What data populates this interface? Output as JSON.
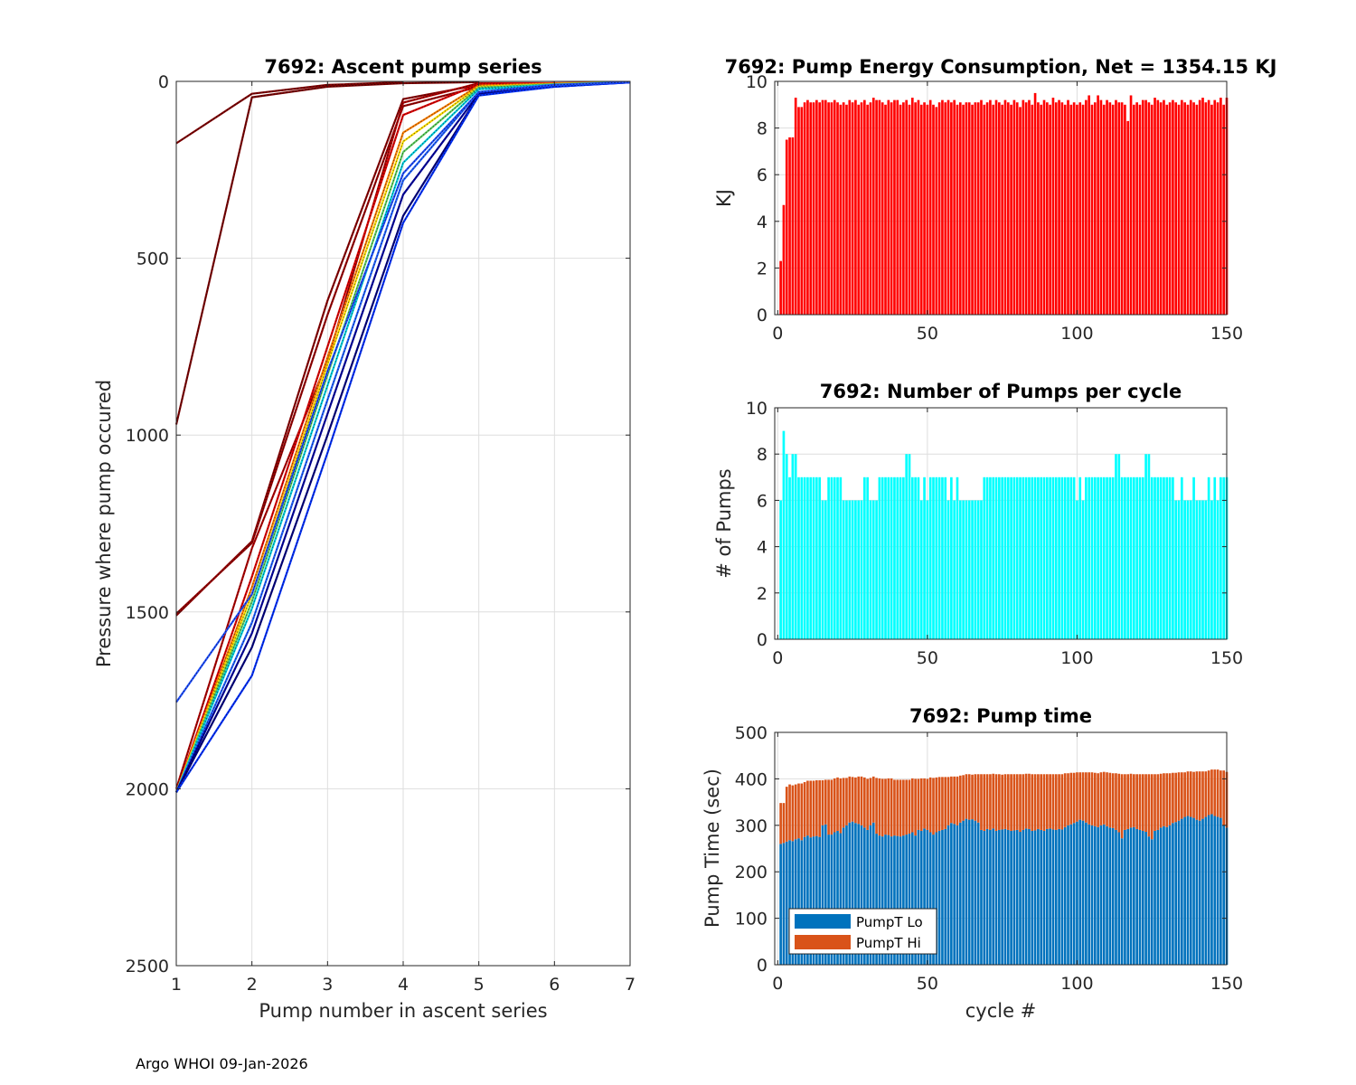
{
  "footer": "Argo WHOI 09-Jan-2026",
  "chart_data": [
    {
      "id": "ascent",
      "type": "line",
      "title": "7692: Ascent pump series",
      "xlabel": "Pump number in ascent series",
      "ylabel": "Pressure where pump occured",
      "xlim": [
        1,
        7
      ],
      "ylim": [
        0,
        2500
      ],
      "y_reversed": true,
      "xticks": [
        1,
        2,
        3,
        4,
        5,
        6,
        7
      ],
      "yticks": [
        0,
        500,
        1000,
        1500,
        2000,
        2500
      ],
      "grid": true,
      "colormap": "jet",
      "series_count": 150,
      "series_note": "one line per profile cycle, colored by cycle (early = dark red, late = blue); representative profiles below",
      "series": [
        {
          "name": "early-a",
          "color": "#800000",
          "x": [
            1,
            2,
            3,
            4
          ],
          "y": [
            175,
            35,
            10,
            2
          ]
        },
        {
          "name": "early-b",
          "color": "#7a0000",
          "x": [
            1,
            2,
            3,
            4,
            5
          ],
          "y": [
            970,
            45,
            15,
            5,
            2
          ]
        },
        {
          "name": "early-c",
          "color": "#8a0000",
          "x": [
            1,
            2,
            3,
            4,
            5,
            6
          ],
          "y": [
            1510,
            1300,
            620,
            50,
            10,
            5
          ]
        },
        {
          "name": "early-d",
          "color": "#990000",
          "x": [
            1,
            2,
            3,
            4,
            5,
            6
          ],
          "y": [
            1505,
            1305,
            660,
            70,
            15,
            5
          ]
        },
        {
          "name": "early-e",
          "color": "#b00000",
          "x": [
            1,
            2,
            3,
            4,
            5,
            6
          ],
          "y": [
            2000,
            1320,
            790,
            60,
            5,
            5
          ]
        },
        {
          "name": "c-red",
          "color": "#e00000",
          "x": [
            1,
            2,
            3,
            4,
            5,
            6,
            7
          ],
          "y": [
            2010,
            1400,
            750,
            95,
            8,
            5,
            2
          ]
        },
        {
          "name": "c-orange",
          "color": "#ff8000",
          "x": [
            1,
            2,
            3,
            4,
            5,
            6,
            7
          ],
          "y": [
            2010,
            1430,
            780,
            145,
            12,
            6,
            2
          ]
        },
        {
          "name": "c-yellow",
          "color": "#ffe000",
          "x": [
            1,
            2,
            3,
            4,
            5,
            6,
            7
          ],
          "y": [
            2010,
            1450,
            800,
            170,
            15,
            8,
            2
          ]
        },
        {
          "name": "c-green",
          "color": "#60d060",
          "x": [
            1,
            2,
            3,
            4,
            5,
            6,
            7
          ],
          "y": [
            2010,
            1470,
            830,
            200,
            18,
            8,
            2
          ]
        },
        {
          "name": "c-cyan",
          "color": "#00d0e0",
          "x": [
            1,
            2,
            3,
            4,
            5,
            6,
            7
          ],
          "y": [
            2010,
            1490,
            860,
            230,
            22,
            10,
            2
          ]
        },
        {
          "name": "c-blue",
          "color": "#2060ff",
          "x": [
            1,
            2,
            3,
            4,
            5,
            6,
            7
          ],
          "y": [
            2010,
            1530,
            900,
            280,
            30,
            10,
            3
          ]
        },
        {
          "name": "c-navy-a",
          "color": "#0000a0",
          "x": [
            1,
            2,
            3,
            4,
            5,
            6,
            7
          ],
          "y": [
            2010,
            1560,
            940,
            320,
            35,
            12,
            3
          ]
        },
        {
          "name": "c-navy-b",
          "color": "#000080",
          "x": [
            1,
            2,
            3,
            4,
            5,
            6,
            7
          ],
          "y": [
            2010,
            1600,
            1000,
            380,
            38,
            15,
            3
          ]
        },
        {
          "name": "late-blue-a",
          "color": "#0030ff",
          "x": [
            1,
            2,
            3,
            4,
            5,
            6,
            7
          ],
          "y": [
            2010,
            1680,
            1050,
            400,
            40,
            15,
            3
          ]
        },
        {
          "name": "late-blue-b",
          "color": "#2050ff",
          "x": [
            1,
            2,
            3,
            4,
            5,
            6,
            7
          ],
          "y": [
            1755,
            1450,
            820,
            260,
            30,
            10,
            2
          ]
        }
      ]
    },
    {
      "id": "energy",
      "type": "bar",
      "title": "7692: Pump Energy Consumption,  Net = 1354.15 KJ",
      "xlabel": "",
      "ylabel": "KJ",
      "xlim": [
        -1,
        150
      ],
      "ylim": [
        0,
        10
      ],
      "xticks": [
        0,
        50,
        100,
        150
      ],
      "yticks": [
        0,
        2,
        4,
        6,
        8,
        10
      ],
      "grid": true,
      "color": "#ff0000",
      "x_start": 1,
      "values": [
        2.3,
        4.7,
        7.5,
        7.6,
        7.6,
        9.3,
        8.9,
        8.9,
        9.1,
        9.2,
        9.1,
        9.1,
        9.2,
        9.1,
        9.2,
        9.2,
        9.1,
        9.1,
        9.2,
        9.1,
        9.0,
        9.1,
        9.0,
        9.2,
        9.1,
        9.2,
        9.0,
        9.1,
        9.2,
        9.0,
        9.1,
        9.3,
        9.2,
        9.2,
        9.1,
        9.0,
        9.2,
        9.1,
        9.2,
        9.2,
        9.0,
        9.1,
        9.2,
        9.0,
        9.3,
        9.1,
        9.2,
        9.0,
        9.1,
        9.0,
        9.2,
        9.0,
        8.9,
        9.1,
        9.2,
        9.1,
        9.2,
        9.1,
        9.2,
        9.0,
        9.1,
        9.0,
        9.1,
        9.1,
        9.0,
        9.1,
        9.1,
        9.2,
        9.0,
        9.1,
        9.2,
        9.0,
        9.2,
        9.1,
        9.0,
        9.2,
        9.1,
        9.0,
        9.2,
        9.1,
        8.9,
        9.2,
        9.1,
        9.2,
        9.0,
        9.5,
        9.1,
        9.0,
        9.2,
        9.1,
        9.0,
        9.3,
        9.1,
        9.2,
        9.1,
        9.0,
        9.2,
        9.0,
        9.1,
        9.0,
        9.1,
        9.0,
        9.2,
        9.4,
        9.0,
        9.1,
        9.4,
        9.2,
        9.0,
        9.2,
        9.1,
        9.0,
        9.2,
        9.1,
        9.1,
        9.0,
        8.3,
        9.4,
        9.0,
        9.1,
        9.0,
        9.2,
        9.2,
        9.1,
        9.0,
        9.3,
        9.2,
        9.1,
        9.2,
        9.0,
        9.1,
        9.2,
        9.1,
        9.0,
        9.2,
        9.1,
        9.0,
        9.2,
        9.1,
        9.0,
        9.2,
        9.3,
        9.1,
        9.2,
        9.0,
        9.2,
        9.1,
        9.3,
        9.0,
        9.3
      ]
    },
    {
      "id": "pumps",
      "type": "bar",
      "title": "7692: Number of Pumps per cycle",
      "xlabel": "",
      "ylabel": "# of Pumps",
      "xlim": [
        -1,
        150
      ],
      "ylim": [
        0,
        10
      ],
      "xticks": [
        0,
        50,
        100,
        150
      ],
      "yticks": [
        0,
        2,
        4,
        6,
        8,
        10
      ],
      "grid": true,
      "color": "#00ffff",
      "x_start": 1,
      "values": [
        6,
        9,
        8,
        7,
        8,
        8,
        7,
        7,
        7,
        7,
        7,
        7,
        7,
        7,
        6,
        6,
        7,
        7,
        7,
        7,
        7,
        6,
        6,
        6,
        6,
        6,
        6,
        6,
        7,
        7,
        6,
        6,
        6,
        7,
        7,
        7,
        7,
        7,
        7,
        7,
        7,
        7,
        8,
        8,
        7,
        7,
        7,
        6,
        7,
        6,
        7,
        7,
        7,
        7,
        7,
        7,
        6,
        7,
        6,
        7,
        6,
        6,
        6,
        6,
        6,
        6,
        6,
        6,
        7,
        7,
        7,
        7,
        7,
        7,
        7,
        7,
        7,
        7,
        7,
        7,
        7,
        7,
        7,
        7,
        7,
        7,
        7,
        7,
        7,
        7,
        7,
        7,
        7,
        7,
        7,
        7,
        7,
        7,
        7,
        6,
        7,
        6,
        7,
        7,
        7,
        7,
        7,
        7,
        7,
        7,
        7,
        7,
        8,
        8,
        7,
        7,
        7,
        7,
        7,
        7,
        7,
        7,
        8,
        8,
        7,
        7,
        7,
        7,
        7,
        7,
        7,
        7,
        6,
        6,
        7,
        6,
        6,
        6,
        7,
        6,
        6,
        6,
        6,
        7,
        6,
        7,
        6,
        7,
        7,
        7
      ]
    },
    {
      "id": "pumptime",
      "type": "bar",
      "stacked": true,
      "title": "7692: Pump time",
      "xlabel": "cycle #",
      "ylabel": "Pump Time (sec)",
      "xlim": [
        -1,
        150
      ],
      "ylim": [
        0,
        500
      ],
      "xticks": [
        0,
        50,
        100,
        150
      ],
      "yticks": [
        0,
        100,
        200,
        300,
        400,
        500
      ],
      "grid": true,
      "legend": "bottom-left",
      "x_start": 1,
      "series": [
        {
          "name": "PumpT Lo",
          "color": "#0072bd",
          "values": [
            260,
            262,
            265,
            268,
            266,
            270,
            272,
            268,
            275,
            278,
            274,
            276,
            277,
            275,
            300,
            302,
            280,
            280,
            285,
            288,
            283,
            295,
            300,
            306,
            308,
            305,
            303,
            300,
            295,
            290,
            300,
            306,
            282,
            278,
            276,
            280,
            279,
            276,
            278,
            277,
            276,
            278,
            280,
            282,
            285,
            278,
            290,
            288,
            293,
            290,
            285,
            280,
            285,
            288,
            290,
            292,
            300,
            305,
            303,
            300,
            306,
            310,
            314,
            312,
            313,
            310,
            306,
            290,
            288,
            292,
            290,
            293,
            288,
            290,
            291,
            292,
            290,
            288,
            289,
            290,
            286,
            290,
            293,
            292,
            288,
            289,
            292,
            290,
            288,
            292,
            293,
            291,
            290,
            292,
            291,
            296,
            300,
            302,
            305,
            308,
            312,
            310,
            306,
            302,
            300,
            298,
            296,
            300,
            302,
            298,
            295,
            294,
            290,
            285,
            272,
            290,
            292,
            295,
            296,
            292,
            290,
            288,
            286,
            276,
            270,
            288,
            290,
            295,
            298,
            296,
            300,
            305,
            307,
            310,
            314,
            318,
            320,
            318,
            316,
            312,
            310,
            314,
            318,
            322,
            324,
            320,
            318,
            316,
            300,
            295
          ]
        },
        {
          "name": "PumpT Hi",
          "color": "#d95319",
          "values": [
            88,
            86,
            118,
            120,
            120,
            118,
            118,
            122,
            118,
            118,
            122,
            120,
            120,
            122,
            97,
            96,
            118,
            118,
            116,
            115,
            118,
            107,
            102,
            99,
            96,
            98,
            102,
            105,
            108,
            110,
            102,
            99,
            120,
            123,
            124,
            120,
            122,
            125,
            120,
            121,
            122,
            120,
            118,
            116,
            116,
            122,
            110,
            113,
            108,
            110,
            118,
            122,
            118,
            116,
            114,
            112,
            104,
            100,
            102,
            105,
            101,
            98,
            96,
            98,
            96,
            100,
            104,
            120,
            122,
            118,
            120,
            118,
            122,
            120,
            118,
            118,
            120,
            122,
            121,
            120,
            124,
            120,
            118,
            119,
            122,
            121,
            118,
            120,
            122,
            118,
            117,
            119,
            120,
            118,
            119,
            116,
            112,
            111,
            108,
            106,
            102,
            104,
            108,
            112,
            114,
            115,
            116,
            114,
            113,
            116,
            118,
            118,
            122,
            126,
            138,
            120,
            118,
            116,
            114,
            118,
            120,
            122,
            124,
            134,
            140,
            122,
            120,
            116,
            114,
            116,
            112,
            108,
            106,
            104,
            100,
            96,
            96,
            98,
            99,
            104,
            106,
            102,
            98,
            96,
            96,
            100,
            102,
            102,
            118,
            120
          ]
        }
      ]
    }
  ]
}
